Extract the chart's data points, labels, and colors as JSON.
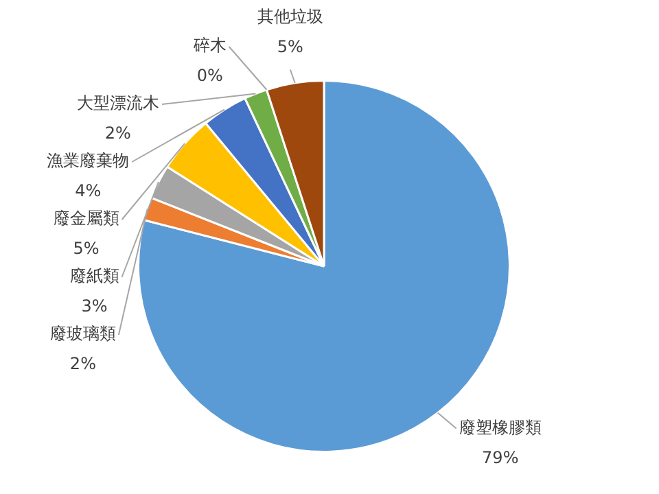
{
  "chart_data": {
    "type": "pie",
    "categories": [
      "廢塑橡膠類",
      "廢玻璃類",
      "廢紙類",
      "廢金屬類",
      "漁業廢棄物",
      "大型漂流木",
      "碎木",
      "其他垃圾"
    ],
    "values": [
      79,
      2,
      3,
      5,
      4,
      2,
      0,
      5
    ],
    "colors": [
      "#5b9bd5",
      "#ed7d31",
      "#a5a5a5",
      "#ffc000",
      "#4472c4",
      "#70ad47",
      "#264478",
      "#9e480e"
    ],
    "value_labels": [
      "79%",
      "2%",
      "3%",
      "5%",
      "4%",
      "2%",
      "0%",
      "5%"
    ],
    "legend": false
  }
}
